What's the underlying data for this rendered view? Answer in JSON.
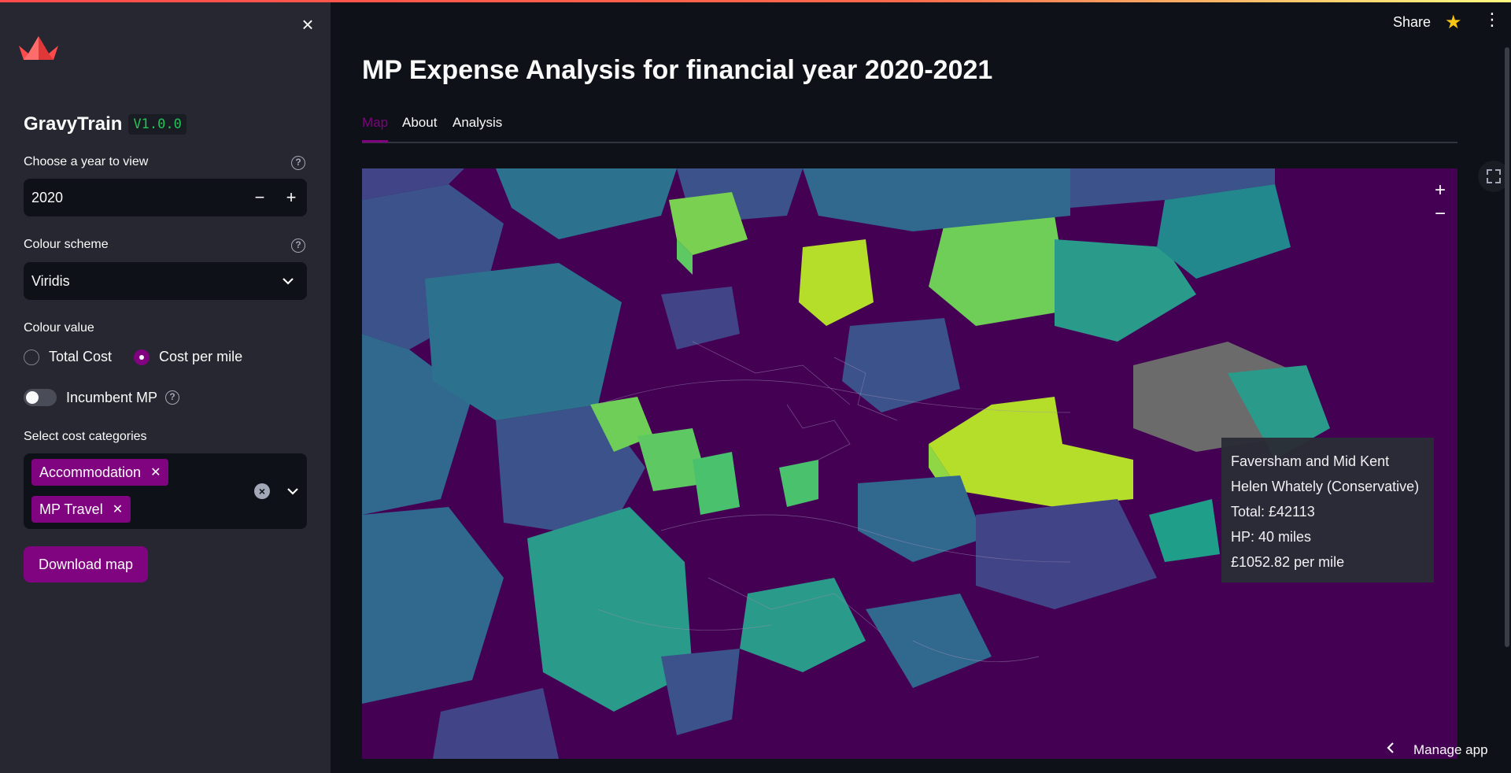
{
  "sidebar": {
    "app_name": "GravyTrain",
    "version": "V1.0.0",
    "year_label": "Choose a year to view",
    "year_value": "2020",
    "colour_scheme_label": "Colour scheme",
    "colour_scheme_value": "Viridis",
    "colour_value_label": "Colour value",
    "radio_options": [
      "Total Cost",
      "Cost per mile"
    ],
    "radio_selected": "Cost per mile",
    "toggle_label": "Incumbent MP",
    "toggle_on": false,
    "categories_label": "Select cost categories",
    "categories": [
      "Accommodation",
      "MP Travel"
    ],
    "download_label": "Download map"
  },
  "header": {
    "share_label": "Share",
    "star_icon": "star-icon",
    "menu_icon": "kebab-menu-icon"
  },
  "main": {
    "title": "MP Expense Analysis for financial year 2020-2021",
    "tabs": [
      "Map",
      "About",
      "Analysis"
    ],
    "active_tab": "Map"
  },
  "tooltip": {
    "constituency": "Faversham and Mid Kent",
    "mp": "Helen Whately (Conservative)",
    "total": "Total: £42113",
    "hp": "HP: 40 miles",
    "per_mile": "£1052.82 per mile"
  },
  "footer": {
    "manage_label": "Manage app"
  },
  "colors": {
    "accent": "#80037f",
    "sidebar_bg": "#262730",
    "main_bg": "#0e1117",
    "viridis_low": "#440154",
    "viridis_high": "#b5de2b"
  }
}
